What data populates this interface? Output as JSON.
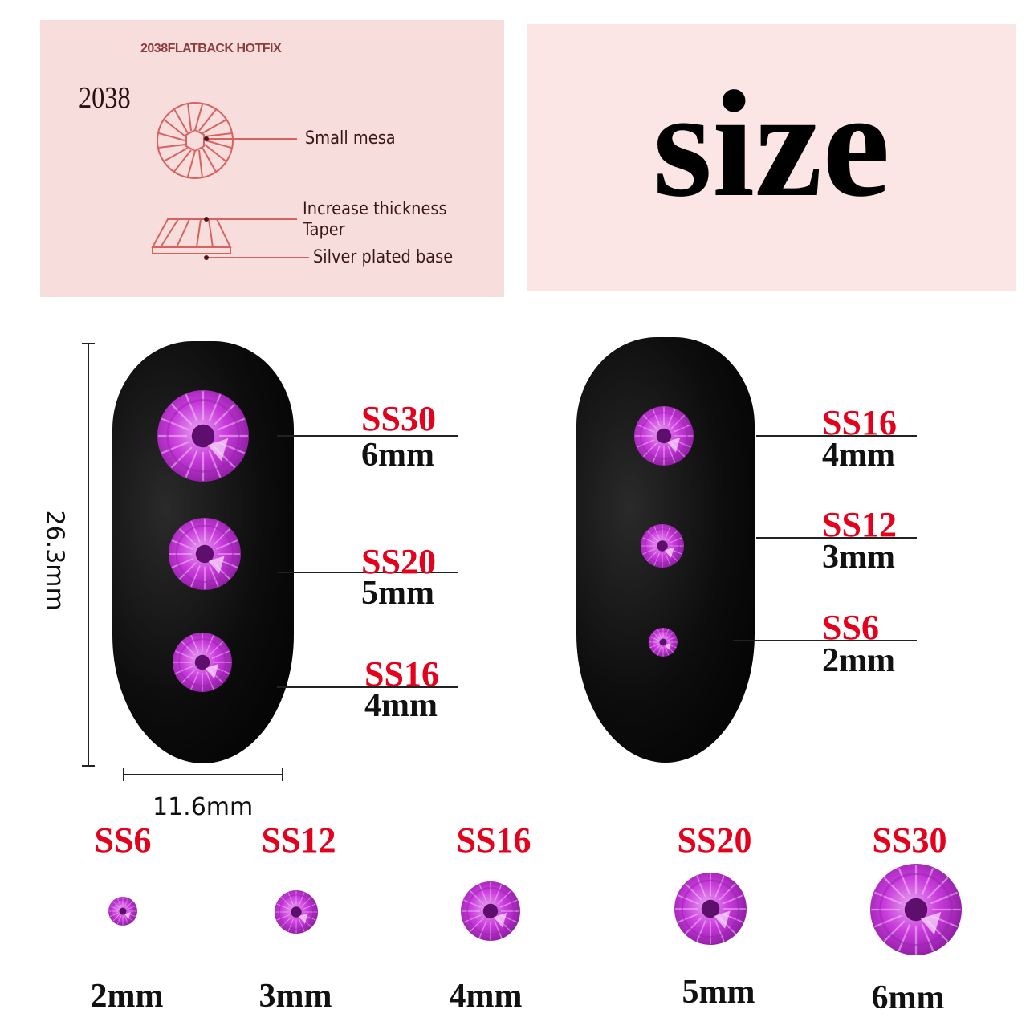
{
  "diagram": {
    "title": "2038FLATBACK HOTFIX",
    "model": "2038",
    "labels": {
      "small_mesa": "Small mesa",
      "increase_thickness": "Increase thickness",
      "taper": "Taper",
      "silver_base": "Silver plated base"
    }
  },
  "heading": "size",
  "nail_dimensions": {
    "height": "26.3mm",
    "width": "11.6mm"
  },
  "left_nail": [
    {
      "ss": "SS30",
      "mm": "6mm"
    },
    {
      "ss": "SS20",
      "mm": "5mm"
    },
    {
      "ss": "SS16",
      "mm": "4mm"
    }
  ],
  "right_nail": [
    {
      "ss": "SS16",
      "mm": "4mm"
    },
    {
      "ss": "SS12",
      "mm": "3mm"
    },
    {
      "ss": "SS6",
      "mm": "2mm"
    }
  ],
  "size_row": [
    {
      "ss": "SS6",
      "mm": "2mm"
    },
    {
      "ss": "SS12",
      "mm": "3mm"
    },
    {
      "ss": "SS16",
      "mm": "4mm"
    },
    {
      "ss": "SS20",
      "mm": "5mm"
    },
    {
      "ss": "SS30",
      "mm": "6mm"
    }
  ],
  "colors": {
    "gem": "#c02ad6",
    "label_red": "#e5001c",
    "panel": "#f7dedd",
    "diagram_line": "#d8625f"
  }
}
